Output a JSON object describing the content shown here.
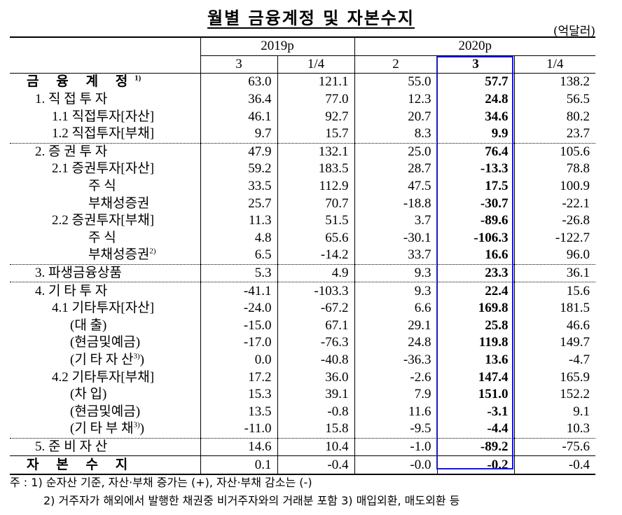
{
  "title": "월별 금융계정 및 자본수지",
  "unit": "(억달러)",
  "years": [
    "2019p",
    "2020p"
  ],
  "quarters": [
    "3",
    "1/4",
    "2",
    "3",
    "1/4"
  ],
  "rows": [
    {
      "label": "금 융 계 정",
      "sup": "1)",
      "values": [
        "63.0",
        "121.1",
        "55.0",
        "57.7",
        "138.2"
      ]
    },
    {
      "label": "1. 직 접 투 자",
      "values": [
        "36.4",
        "77.0",
        "12.3",
        "24.8",
        "56.5"
      ]
    },
    {
      "label": "1.1 직접투자[자산]",
      "values": [
        "46.1",
        "92.7",
        "20.7",
        "34.6",
        "80.2"
      ]
    },
    {
      "label": "1.2 직접투자[부채]",
      "values": [
        "9.7",
        "15.7",
        "8.3",
        "9.9",
        "23.7"
      ]
    },
    {
      "label": "2. 증 권 투 자",
      "values": [
        "47.9",
        "132.1",
        "25.0",
        "76.4",
        "105.6"
      ]
    },
    {
      "label": "2.1 증권투자[자산]",
      "values": [
        "59.2",
        "183.5",
        "28.7",
        "-13.3",
        "78.8"
      ]
    },
    {
      "label": "주 식",
      "values": [
        "33.5",
        "112.9",
        "47.5",
        "17.5",
        "100.9"
      ]
    },
    {
      "label": "부채성증권",
      "values": [
        "25.7",
        "70.7",
        "-18.8",
        "-30.7",
        "-22.1"
      ]
    },
    {
      "label": "2.2 증권투자[부채]",
      "values": [
        "11.3",
        "51.5",
        "3.7",
        "-89.6",
        "-26.8"
      ]
    },
    {
      "label": "주 식",
      "values": [
        "4.8",
        "65.6",
        "-30.1",
        "-106.3",
        "-122.7"
      ]
    },
    {
      "label": "부채성증권",
      "sup": "2)",
      "values": [
        "6.5",
        "-14.2",
        "33.7",
        "16.6",
        "96.0"
      ]
    },
    {
      "label": "3. 파생금융상품",
      "values": [
        "5.3",
        "4.9",
        "9.3",
        "23.3",
        "36.1"
      ]
    },
    {
      "label": "4. 기 타 투 자",
      "values": [
        "-41.1",
        "-103.3",
        "9.3",
        "22.4",
        "15.6"
      ]
    },
    {
      "label": "4.1 기타투자[자산]",
      "values": [
        "-24.0",
        "-67.2",
        "6.6",
        "169.8",
        "181.5"
      ]
    },
    {
      "label": "(대 출)",
      "values": [
        "-15.0",
        "67.1",
        "29.1",
        "25.8",
        "46.6"
      ]
    },
    {
      "label": "(현금및예금)",
      "values": [
        "-17.0",
        "-76.3",
        "24.8",
        "119.8",
        "149.7"
      ]
    },
    {
      "label": "(기 타 자 산",
      "sup": "3)",
      "label_end": ")",
      "values": [
        "0.0",
        "-40.8",
        "-36.3",
        "13.6",
        "-4.7"
      ]
    },
    {
      "label": "4.2 기타투자[부채]",
      "values": [
        "17.2",
        "36.0",
        "-2.6",
        "147.4",
        "165.9"
      ]
    },
    {
      "label": "(차 입)",
      "values": [
        "15.3",
        "39.1",
        "7.9",
        "151.0",
        "152.2"
      ]
    },
    {
      "label": "(현금및예금)",
      "values": [
        "13.5",
        "-0.8",
        "11.6",
        "-3.1",
        "9.1"
      ]
    },
    {
      "label": "(기 타 부 채",
      "sup": "3)",
      "label_end": ")",
      "values": [
        "-11.0",
        "15.8",
        "-9.5",
        "-4.4",
        "10.3"
      ]
    },
    {
      "label": "5. 준 비 자 산",
      "values": [
        "14.6",
        "10.4",
        "-1.0",
        "-89.2",
        "-75.6"
      ]
    },
    {
      "label": "자 본 수 지",
      "values": [
        "0.1",
        "-0.4",
        "-0.0",
        "-0.2",
        "-0.4"
      ]
    }
  ],
  "notes": {
    "line1": "주 : 1) 순자산 기준, 자산·부채 증가는 (+), 자산·부채 감소는 (-)",
    "line2": "2) 거주자가 해외에서 발행한 채권중 비거주자와의 거래분 포함  3) 매입외환, 매도외환 등"
  }
}
